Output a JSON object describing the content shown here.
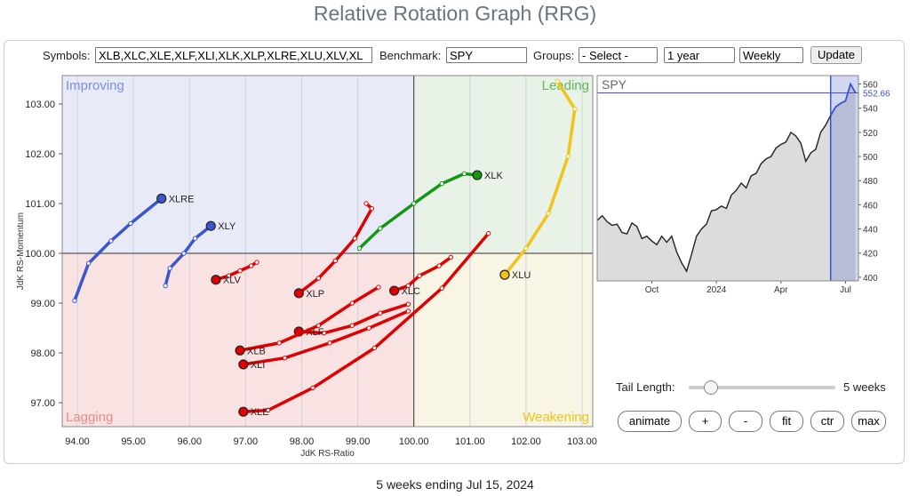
{
  "header": {
    "title": "Relative Rotation Graph (RRG)"
  },
  "controls": {
    "symbols_label": "Symbols:",
    "symbols": "XLB,XLC,XLE,XLF,XLI,XLK,XLP,XLRE,XLU,XLV,XL",
    "benchmark_label": "Benchmark:",
    "benchmark": "SPY",
    "groups_label": "Groups:",
    "groups": "- Select -",
    "period": "1 year",
    "frequency": "Weekly",
    "update": "Update",
    "tail_label": "Tail Length:",
    "tail_value": "5 weeks",
    "buttons": [
      "animate",
      "+",
      "-",
      "fit",
      "ctr",
      "max"
    ]
  },
  "chart_data": [
    {
      "type": "scatter",
      "xlabel": "JdK RS-Ratio",
      "ylabel": "JdK RS-Momentum",
      "xlim": [
        93.73,
        103.19
      ],
      "ylim": [
        96.52,
        103.57
      ],
      "xticks": [
        {
          "value": 94,
          "label": "94.00"
        },
        {
          "value": 95,
          "label": "95.00"
        },
        {
          "value": 96,
          "label": "96.00"
        },
        {
          "value": 97,
          "label": "97.00"
        },
        {
          "value": 98,
          "label": "98.00"
        },
        {
          "value": 99,
          "label": "99.00"
        },
        {
          "value": 100,
          "label": "100.00"
        },
        {
          "value": 101,
          "label": "101.00"
        },
        {
          "value": 102,
          "label": "102.00"
        },
        {
          "value": 103,
          "label": "103.00"
        }
      ],
      "yticks": [
        {
          "value": 97,
          "label": "97.00"
        },
        {
          "value": 98,
          "label": "98.00"
        },
        {
          "value": 99,
          "label": "99.00"
        },
        {
          "value": 100,
          "label": "100.00"
        },
        {
          "value": 101,
          "label": "101.00"
        },
        {
          "value": 102,
          "label": "102.00"
        },
        {
          "value": 103,
          "label": "103.00"
        }
      ],
      "center": [
        100,
        100
      ],
      "quadrants": [
        "Improving",
        "Leading",
        "Lagging",
        "Weakening"
      ],
      "grid": true,
      "series": [
        {
          "name": "XLRE",
          "color": "#3a55d0",
          "x": [
            93.95,
            94.2,
            94.6,
            94.95,
            95.5
          ],
          "y": [
            99.05,
            99.8,
            100.25,
            100.6,
            101.1
          ]
        },
        {
          "name": "XLY",
          "color": "#3a55d0",
          "x": [
            95.57,
            95.65,
            95.9,
            96.1,
            96.38
          ],
          "y": [
            99.35,
            99.7,
            100.0,
            100.3,
            100.55
          ]
        },
        {
          "name": "XLV",
          "color": "#e00000",
          "x": [
            97.2,
            97.1,
            96.9,
            96.7,
            96.47
          ],
          "y": [
            99.82,
            99.75,
            99.65,
            99.55,
            99.47
          ]
        },
        {
          "name": "XLP",
          "color": "#e00000",
          "x": [
            99.15,
            99.25,
            98.95,
            98.6,
            98.3,
            97.95
          ],
          "y": [
            101.0,
            100.9,
            100.3,
            99.85,
            99.5,
            99.2
          ]
        },
        {
          "name": "XLC",
          "color": "#e00000",
          "x": [
            100.66,
            100.45,
            100.1,
            99.9,
            99.65
          ],
          "y": [
            99.92,
            99.75,
            99.55,
            99.35,
            99.25
          ]
        },
        {
          "name": "XLF",
          "color": "#e00000",
          "x": [
            99.9,
            99.4,
            98.9,
            98.4,
            97.95
          ],
          "y": [
            98.98,
            98.8,
            98.55,
            98.4,
            98.43
          ]
        },
        {
          "name": "XLB",
          "color": "#e00000",
          "x": [
            99.37,
            98.9,
            98.3,
            97.6,
            96.9
          ],
          "y": [
            99.32,
            99.0,
            98.55,
            98.2,
            98.05
          ]
        },
        {
          "name": "XLI",
          "color": "#e00000",
          "x": [
            99.9,
            99.2,
            98.5,
            97.7,
            96.96
          ],
          "y": [
            98.84,
            98.5,
            98.2,
            97.9,
            97.77
          ]
        },
        {
          "name": "XLE",
          "color": "#e00000",
          "x": [
            101.33,
            100.5,
            99.3,
            98.2,
            97.4,
            96.96
          ],
          "y": [
            100.4,
            99.3,
            98.1,
            97.3,
            96.85,
            96.82
          ]
        },
        {
          "name": "XLK",
          "color": "#119911",
          "x": [
            99.03,
            99.4,
            100.0,
            100.5,
            100.9,
            101.13
          ],
          "y": [
            100.1,
            100.5,
            101.0,
            101.4,
            101.6,
            101.57
          ]
        },
        {
          "name": "XLU",
          "color": "#f0c419",
          "x": [
            102.56,
            102.87,
            102.75,
            102.4,
            102.0,
            101.62
          ],
          "y": [
            103.45,
            102.9,
            101.95,
            100.8,
            100.1,
            99.57
          ]
        }
      ]
    },
    {
      "type": "line",
      "title": "SPY",
      "color": "#222222",
      "highlight_color": "#3a55d0",
      "x": [
        0,
        1,
        2,
        3,
        4,
        5,
        6,
        7,
        8,
        9,
        10,
        11,
        12,
        13,
        14,
        15,
        16,
        17,
        18,
        19,
        20,
        21,
        22,
        23,
        24,
        25,
        26,
        27,
        28,
        29,
        30,
        31,
        32,
        33,
        34,
        35,
        36,
        37,
        38,
        39,
        40,
        41,
        42,
        43,
        44,
        45,
        46,
        47,
        48,
        49,
        50,
        51,
        52
      ],
      "values": [
        447,
        451,
        446,
        443,
        444,
        437,
        436,
        445,
        442,
        432,
        434,
        430,
        427,
        434,
        429,
        434,
        421,
        412,
        405,
        419,
        434,
        440,
        444,
        455,
        456,
        459,
        457,
        468,
        472,
        478,
        474,
        484,
        486,
        494,
        498,
        500,
        507,
        510,
        512,
        520,
        517,
        511,
        496,
        503,
        506,
        520,
        526,
        534,
        541,
        544,
        546,
        560,
        552.66
      ],
      "xlim": [
        0,
        52.6
      ],
      "ylim": [
        397,
        567
      ],
      "xticks": [
        {
          "value": 11,
          "label": "Oct"
        },
        {
          "value": 24,
          "label": "2024"
        },
        {
          "value": 37,
          "label": "Apr"
        },
        {
          "value": 50,
          "label": "Jul"
        }
      ],
      "yticks": [
        400,
        420,
        440,
        460,
        480,
        500,
        520,
        540,
        560
      ]
    }
  ],
  "footer": "5 weeks ending Jul 15, 2024"
}
